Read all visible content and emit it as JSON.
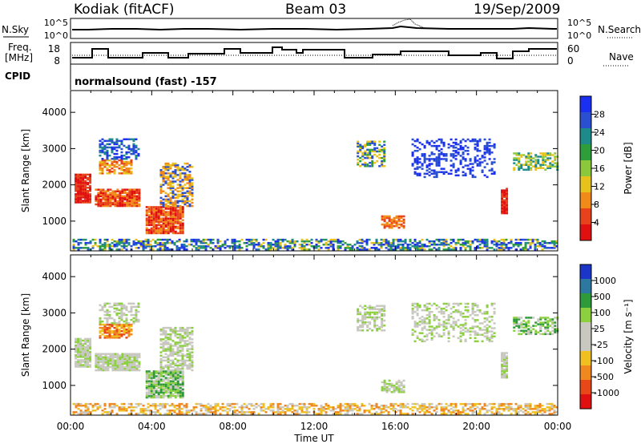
{
  "header": {
    "station": "Kodiak (fitACF)",
    "beam": "Beam 03",
    "date": "19/Sep/2009"
  },
  "top_panel": {
    "left_label": "N.Sky",
    "left_ticks": [
      "10^5",
      "10^0"
    ],
    "right_ticks": [
      "10^5",
      "10^0"
    ],
    "right_label": "N.Search"
  },
  "freq_panel": {
    "left_label_1": "Freq.",
    "left_label_2": "[MHz]",
    "left_ticks": [
      "18",
      "8"
    ],
    "right_ticks": [
      "60",
      "0"
    ],
    "right_label": "Nave"
  },
  "cpid": {
    "label": "CPID",
    "program": "normalsound (fast) -157"
  },
  "colors": {
    "power": [
      "#1b2ff0",
      "#2a4fd0",
      "#1f8a8a",
      "#2e9e3a",
      "#8cc83c",
      "#e8c21c",
      "#f08a18",
      "#e8421c",
      "#e01010"
    ],
    "velocity": [
      "#1a35c8",
      "#2d78a0",
      "#2f9a3a",
      "#8cd040",
      "#c8c8c0",
      "#c8c8c0",
      "#f0c020",
      "#f08820",
      "#e84818",
      "#e01010"
    ]
  },
  "chart_data": [
    {
      "type": "heatmap",
      "name": "power",
      "ylabel": "Slant Range [km]",
      "yticks": [
        "4000",
        "3000",
        "2000",
        "1000"
      ],
      "yrange": [
        180,
        4600
      ],
      "colorbar": {
        "label": "Power [dB]",
        "ticks": [
          "28",
          "24",
          "20",
          "16",
          "12",
          "8",
          "4"
        ]
      }
    },
    {
      "type": "heatmap",
      "name": "velocity",
      "ylabel": "Slant Range [km]",
      "yticks": [
        "4000",
        "3000",
        "2000",
        "1000"
      ],
      "yrange": [
        180,
        4600
      ],
      "colorbar": {
        "label": "Velocity [m s⁻¹]",
        "ticks": [
          "1000",
          "500",
          "100",
          "25",
          "-25",
          "-100",
          "-500",
          "-1000"
        ]
      },
      "xlabel": "Time UT",
      "xticks": [
        "00:00",
        "04:00",
        "08:00",
        "12:00",
        "16:00",
        "20:00",
        "00:00"
      ]
    }
  ]
}
